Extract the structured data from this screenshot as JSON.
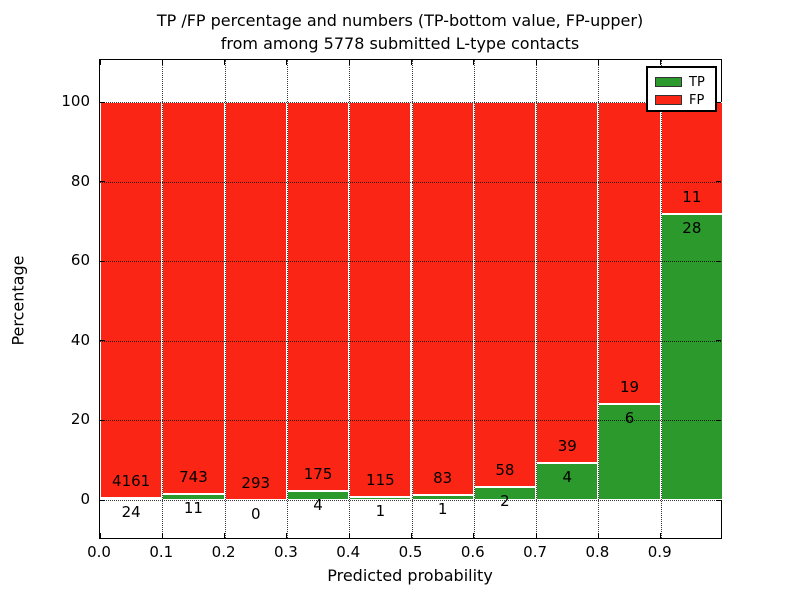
{
  "figure": {
    "title_line1": "TP /FP percentage and numbers (TP-bottom value, FP-upper)",
    "title_line2": "from among 5778 submitted L-type contacts",
    "xlabel": "Predicted probability",
    "ylabel": "Percentage",
    "total_contacts": 5778
  },
  "legend": {
    "position": "upper right",
    "items": [
      {
        "label": "TP",
        "color": "#2b992b"
      },
      {
        "label": "FP",
        "color": "#fb2516"
      }
    ]
  },
  "chart_data": {
    "type": "bar",
    "stacked": true,
    "normalized_to_percent": true,
    "title": "TP /FP percentage and numbers (TP-bottom value, FP-upper) from among 5778 submitted L-type contacts",
    "xlabel": "Predicted probability",
    "ylabel": "Percentage",
    "bin_starts": [
      0.0,
      0.1,
      0.2,
      0.3,
      0.4,
      0.5,
      0.6,
      0.7,
      0.8,
      0.9
    ],
    "bin_width": 0.1,
    "series": [
      {
        "name": "TP",
        "color": "#2b992b",
        "counts": [
          24,
          11,
          0,
          4,
          1,
          1,
          2,
          4,
          6,
          28
        ]
      },
      {
        "name": "FP",
        "color": "#fb2516",
        "counts": [
          4161,
          743,
          293,
          175,
          115,
          83,
          58,
          39,
          19,
          11
        ]
      }
    ],
    "tp_percent_of_bin": [
      0.57,
      1.46,
      0.0,
      2.23,
      0.86,
      1.19,
      3.33,
      9.3,
      24.0,
      71.79
    ],
    "xlim": [
      0.0,
      1.0
    ],
    "ylim": [
      -10.5,
      110.5
    ],
    "xtick_labels": [
      "0.0",
      "0.1",
      "0.2",
      "0.3",
      "0.4",
      "0.5",
      "0.6",
      "0.7",
      "0.8",
      "0.9"
    ],
    "ytick_values": [
      0,
      20,
      40,
      60,
      80,
      100
    ],
    "grid": "dotted",
    "legend_position": "upper right"
  }
}
